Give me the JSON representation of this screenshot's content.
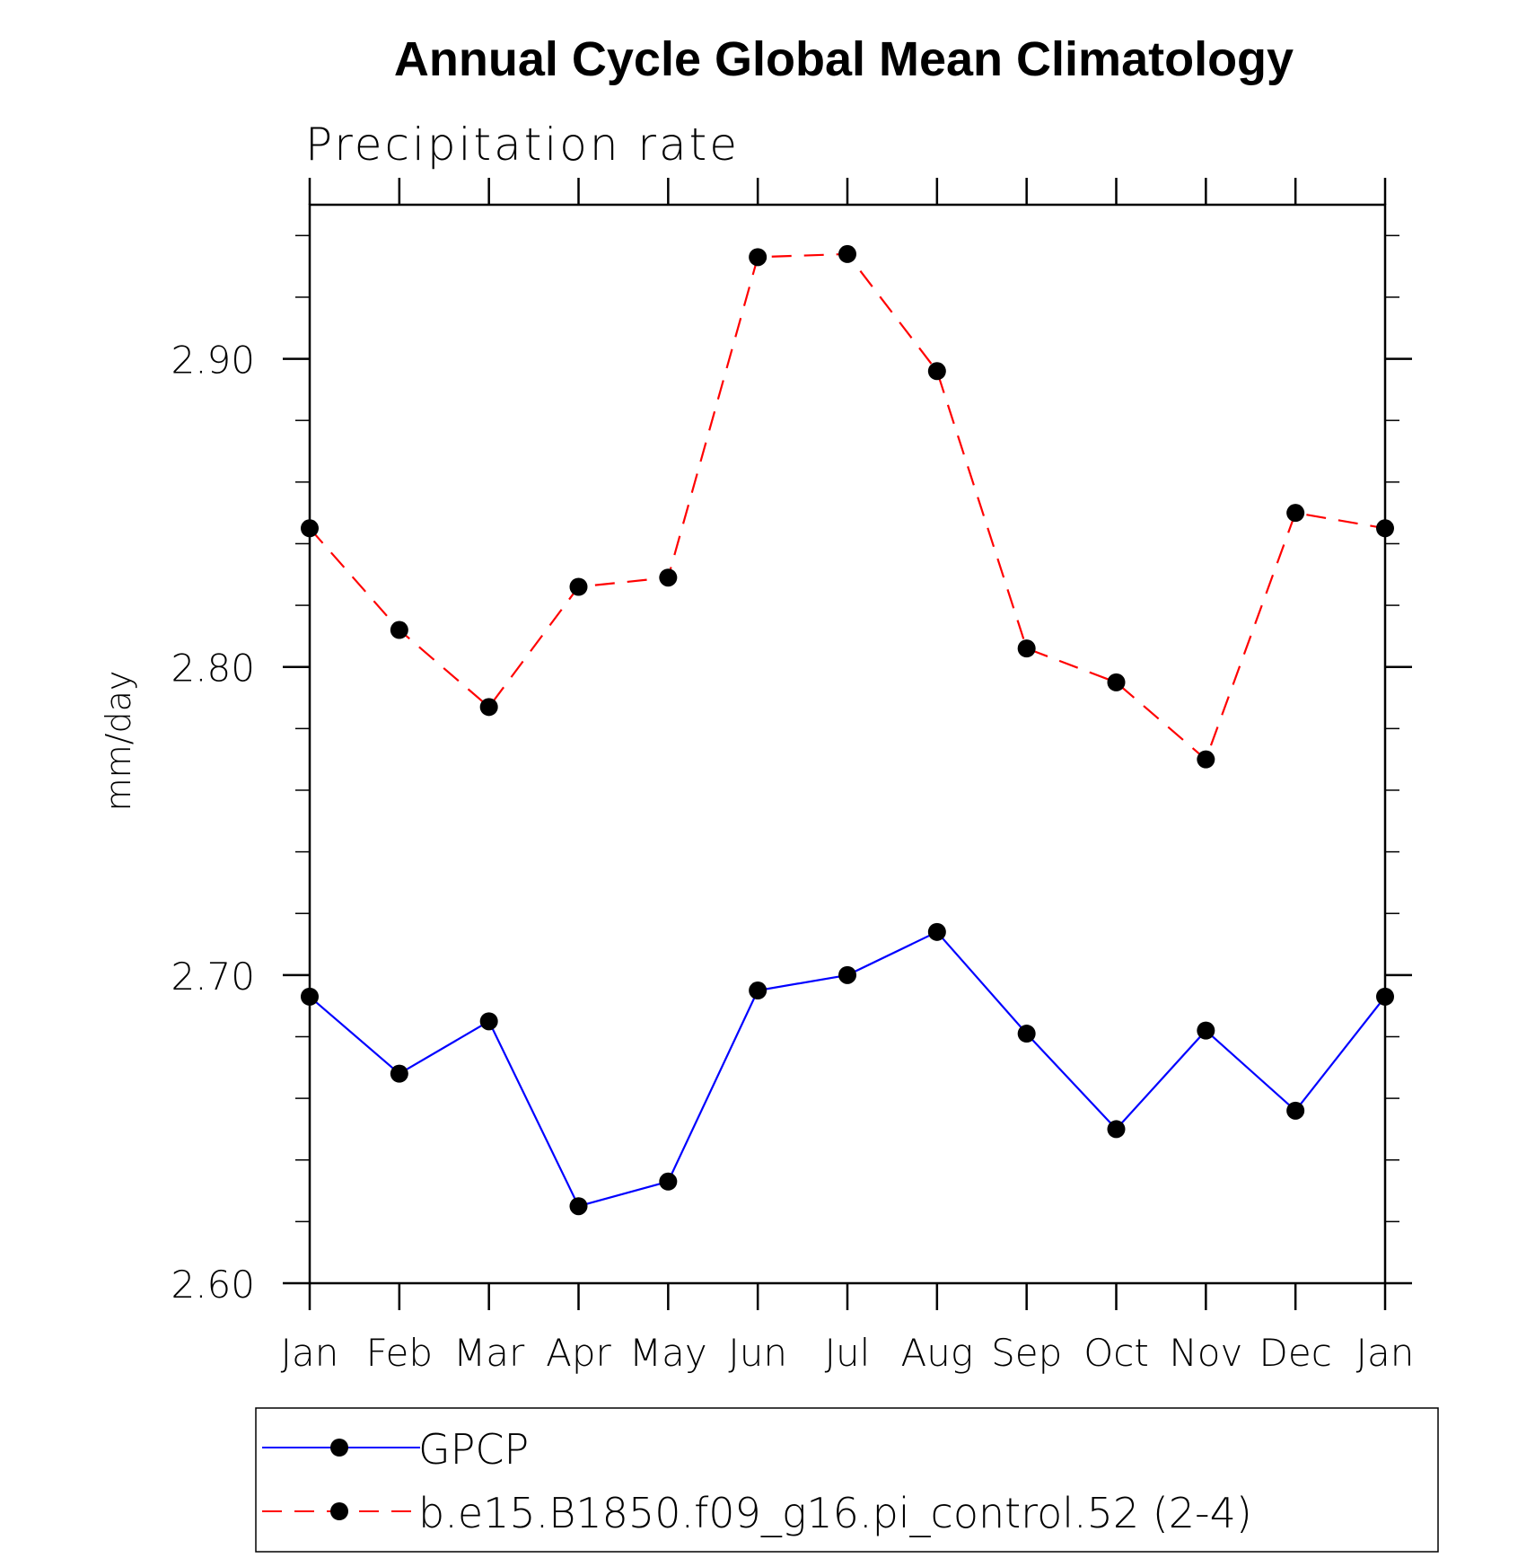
{
  "chart_data": {
    "type": "line",
    "title": "Annual Cycle Global Mean Climatology",
    "subtitle": "Precipitation rate",
    "xlabel": "",
    "ylabel": "mm/day",
    "categories": [
      "Jan",
      "Feb",
      "Mar",
      "Apr",
      "May",
      "Jun",
      "Jul",
      "Aug",
      "Sep",
      "Oct",
      "Nov",
      "Dec",
      "Jan"
    ],
    "ylim": [
      2.6,
      2.95
    ],
    "yticks_major": [
      2.6,
      2.7,
      2.8,
      2.9
    ],
    "ytick_labels": [
      "2.60",
      "2.70",
      "2.80",
      "2.90"
    ],
    "yticks_minor_step": 0.02,
    "grid": false,
    "legend_position": "bottom",
    "series": [
      {
        "name": "GPCP",
        "color": "#0000ff",
        "dash": "solid",
        "marker": "filled-circle",
        "values": [
          2.693,
          2.668,
          2.685,
          2.625,
          2.633,
          2.695,
          2.7,
          2.714,
          2.681,
          2.65,
          2.682,
          2.656,
          2.693
        ]
      },
      {
        "name": "b.e15.B1850.f09_g16.pi_control.52 (2-4)",
        "color": "#ff0000",
        "dash": "dashed",
        "marker": "filled-circle",
        "values": [
          2.845,
          2.812,
          2.787,
          2.826,
          2.829,
          2.933,
          2.934,
          2.896,
          2.806,
          2.795,
          2.77,
          2.85,
          2.845
        ]
      }
    ]
  }
}
